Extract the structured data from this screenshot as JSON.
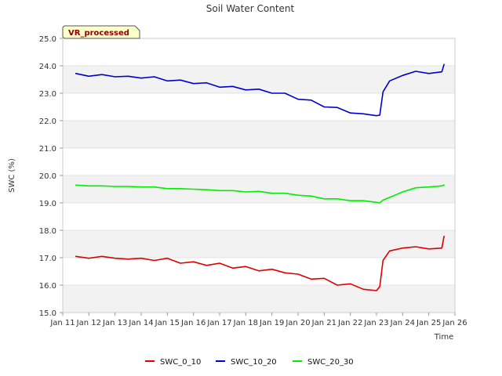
{
  "chart_data": {
    "type": "line",
    "title": "Soil Water Content",
    "xlabel": "Time",
    "ylabel": "SWC (%)",
    "badge": "VR_processed",
    "ylim": [
      15.0,
      25.0
    ],
    "xlim": [
      "Jan 11",
      "Jan 26"
    ],
    "x_ticks": [
      "Jan 11",
      "Jan 12",
      "Jan 13",
      "Jan 14",
      "Jan 15",
      "Jan 16",
      "Jan 17",
      "Jan 18",
      "Jan 19",
      "Jan 20",
      "Jan 21",
      "Jan 22",
      "Jan 23",
      "Jan 24",
      "Jan 25",
      "Jan 26"
    ],
    "y_ticks": [
      "15.0",
      "16.0",
      "17.0",
      "18.0",
      "19.0",
      "20.0",
      "21.0",
      "22.0",
      "23.0",
      "24.0",
      "25.0"
    ],
    "grid": "alternating horizontal bands",
    "legend_position": "bottom",
    "x_dates": [
      "Jan 11 12:00",
      "Jan 12 00:00",
      "Jan 12 12:00",
      "Jan 13 00:00",
      "Jan 13 12:00",
      "Jan 14 00:00",
      "Jan 14 12:00",
      "Jan 15 00:00",
      "Jan 15 12:00",
      "Jan 16 00:00",
      "Jan 16 12:00",
      "Jan 17 00:00",
      "Jan 17 12:00",
      "Jan 18 00:00",
      "Jan 18 12:00",
      "Jan 19 00:00",
      "Jan 19 12:00",
      "Jan 20 00:00",
      "Jan 20 12:00",
      "Jan 21 00:00",
      "Jan 21 12:00",
      "Jan 22 00:00",
      "Jan 22 12:00",
      "Jan 23 00:00",
      "Jan 23 03:00",
      "Jan 23 06:00",
      "Jan 23 12:00",
      "Jan 24 00:00",
      "Jan 24 12:00",
      "Jan 25 00:00",
      "Jan 25 12:00",
      "Jan 25 14:00"
    ],
    "series": [
      {
        "name": "SWC_0_10",
        "color": "#dd0000",
        "values": [
          17.05,
          16.98,
          17.05,
          16.98,
          16.95,
          16.98,
          16.9,
          16.98,
          16.8,
          16.85,
          16.72,
          16.8,
          16.62,
          16.68,
          16.52,
          16.58,
          16.45,
          16.4,
          16.22,
          16.25,
          16.0,
          16.05,
          15.85,
          15.8,
          15.95,
          16.9,
          17.25,
          17.35,
          17.4,
          17.32,
          17.35,
          17.78
        ]
      },
      {
        "name": "SWC_10_20",
        "color": "#0000cc",
        "values": [
          23.72,
          23.62,
          23.68,
          23.6,
          23.62,
          23.55,
          23.6,
          23.45,
          23.48,
          23.35,
          23.38,
          23.22,
          23.25,
          23.12,
          23.15,
          23.0,
          23.0,
          22.78,
          22.75,
          22.5,
          22.48,
          22.28,
          22.25,
          22.18,
          22.2,
          23.05,
          23.45,
          23.65,
          23.8,
          23.72,
          23.78,
          24.05
        ]
      },
      {
        "name": "SWC_20_30",
        "color": "#00ee00",
        "values": [
          19.65,
          19.62,
          19.62,
          19.6,
          19.6,
          19.58,
          19.58,
          19.52,
          19.52,
          19.5,
          19.48,
          19.45,
          19.45,
          19.4,
          19.42,
          19.35,
          19.35,
          19.28,
          19.25,
          19.15,
          19.15,
          19.08,
          19.08,
          19.02,
          19.0,
          19.1,
          19.2,
          19.4,
          19.55,
          19.58,
          19.62,
          19.65
        ]
      }
    ]
  }
}
